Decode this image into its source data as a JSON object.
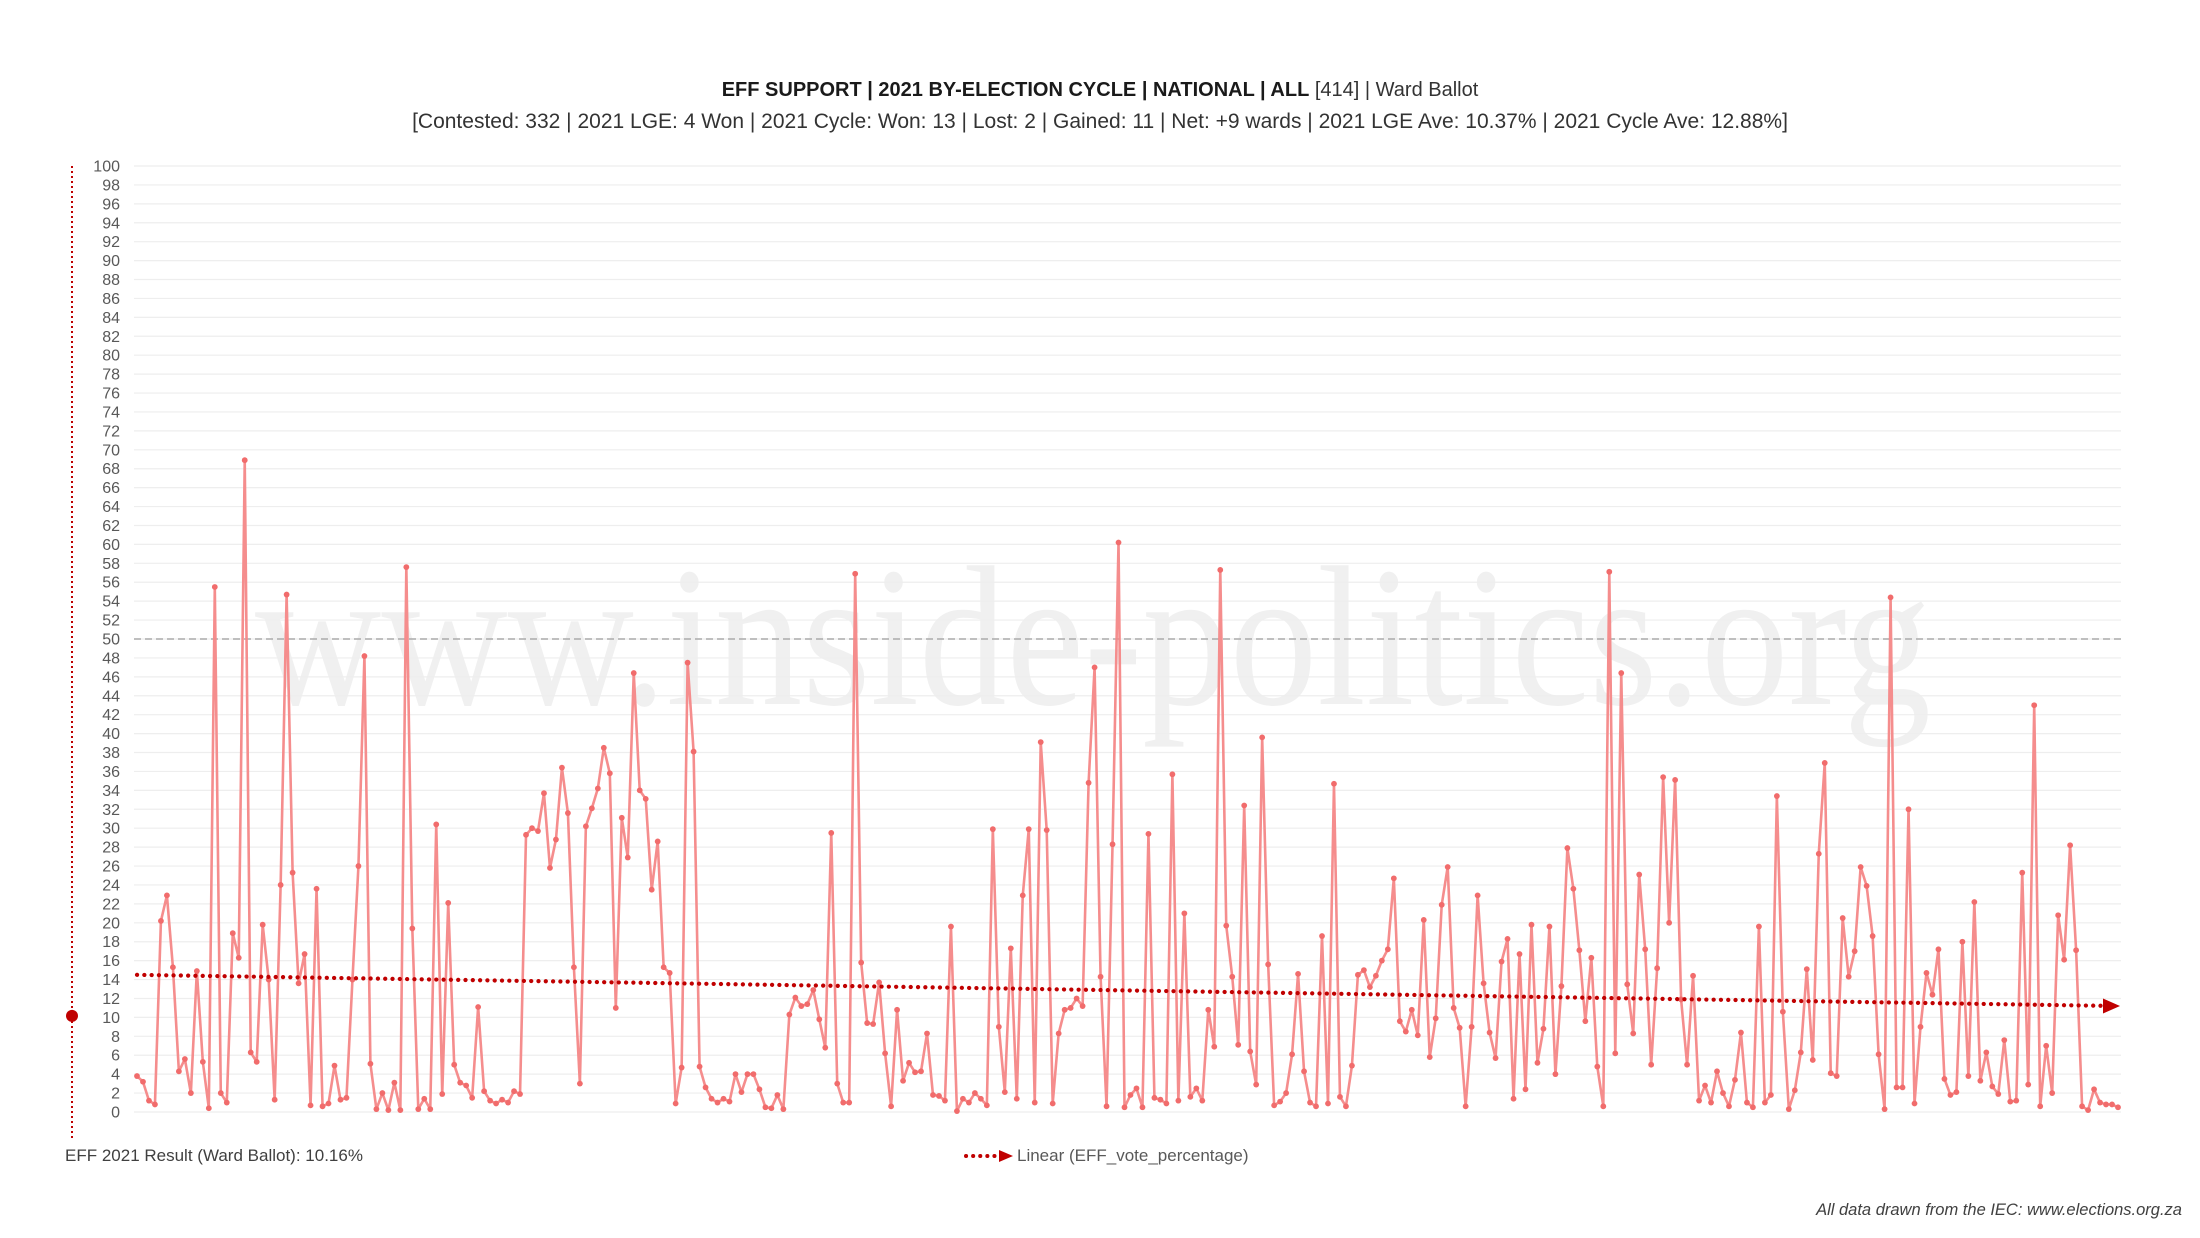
{
  "chart_data": {
    "type": "line",
    "title": {
      "bold": "EFF SUPPORT | 2021 BY-ELECTION CYCLE | NATIONAL | ALL",
      "regular": "[414] | Ward Ballot"
    },
    "subtitle": "[Contested: 332 | 2021 LGE: 4 Won | 2021 Cycle: Won: 13 | Lost: 2 | Gained: 11 | Net: +9 wards | 2021 LGE Ave: 10.37% | 2021 Cycle Ave: 12.88%]",
    "ylim": [
      0,
      100
    ],
    "yticks": [
      0,
      2,
      4,
      6,
      8,
      10,
      12,
      14,
      16,
      18,
      20,
      22,
      24,
      26,
      28,
      30,
      32,
      34,
      36,
      38,
      40,
      42,
      44,
      46,
      48,
      50,
      52,
      54,
      56,
      58,
      60,
      62,
      64,
      66,
      68,
      70,
      72,
      74,
      76,
      78,
      80,
      82,
      84,
      86,
      88,
      90,
      92,
      94,
      96,
      98,
      100
    ],
    "grid": true,
    "series": [
      {
        "values": [
          3.8,
          3.2,
          1.2,
          0.8,
          20.2,
          22.9,
          15.3,
          4.3,
          5.6,
          2.0,
          14.9,
          5.3,
          0.4,
          55.5,
          2.0,
          1.0,
          18.9,
          16.3,
          68.9,
          6.3,
          5.3,
          19.8,
          14.0,
          1.3,
          24.0,
          54.7,
          25.3,
          13.6,
          16.7,
          0.7,
          23.6,
          0.6,
          0.9,
          4.9,
          1.3,
          1.5,
          14.0,
          26.0,
          48.2,
          5.1,
          0.3,
          2.0,
          0.2,
          3.1,
          0.2,
          57.6,
          19.4,
          0.3,
          1.4,
          0.3,
          30.4,
          1.9,
          22.1,
          5.0,
          3.1,
          2.8,
          1.5,
          11.1,
          2.2,
          1.2,
          0.9,
          1.3,
          1.0,
          2.2,
          1.9,
          29.3,
          30.0,
          29.7,
          33.7,
          25.8,
          28.8,
          36.4,
          31.6,
          15.3,
          3.0,
          30.2,
          32.1,
          34.2,
          38.5,
          35.8,
          11.0,
          31.1,
          26.9,
          46.4,
          34.0,
          33.1,
          23.5,
          28.6,
          15.3,
          14.7,
          0.9,
          4.7,
          47.5,
          38.1,
          4.8,
          2.6,
          1.4,
          1.0,
          1.4,
          1.1,
          4.0,
          2.1,
          4.0,
          4.0,
          2.4,
          0.5,
          0.4,
          1.8,
          0.3,
          10.3,
          12.1,
          11.2,
          11.4,
          12.9,
          9.8,
          6.8,
          29.5,
          3.0,
          1.0,
          1.0,
          56.9,
          15.8,
          9.4,
          9.3,
          13.7,
          6.2,
          0.6,
          10.8,
          3.3,
          5.2,
          4.2,
          4.3,
          8.3,
          1.8,
          1.7,
          1.2,
          19.6,
          0.1,
          1.4,
          1.0,
          2.0,
          1.4,
          0.7,
          29.9,
          9.0,
          2.1,
          17.3,
          1.4,
          22.9,
          29.9,
          1.0,
          39.1,
          29.8,
          0.9,
          8.3,
          10.8,
          11.0,
          12.0,
          11.2,
          34.8,
          47.0,
          14.3,
          0.6,
          28.3,
          60.2,
          0.5,
          1.8,
          2.5,
          0.5,
          29.4,
          1.5,
          1.3,
          0.9,
          35.7,
          1.2,
          21.0,
          1.6,
          2.5,
          1.2,
          10.8,
          6.9,
          57.3,
          19.7,
          14.3,
          7.1,
          32.4,
          6.4,
          2.9,
          39.6,
          15.6,
          0.7,
          1.1,
          2.0,
          6.1,
          14.6,
          4.3,
          1.0,
          0.6,
          18.6,
          0.9,
          34.7,
          1.6,
          0.6,
          4.9,
          14.5,
          15.0,
          13.2,
          14.4,
          16.0,
          17.2,
          24.7,
          9.6,
          8.5,
          10.8,
          8.1,
          20.3,
          5.8,
          9.9,
          21.9,
          25.9,
          11.0,
          8.9,
          0.6,
          9.0,
          22.9,
          13.6,
          8.4,
          5.7,
          15.9,
          18.3,
          1.4,
          16.7,
          2.4,
          19.8,
          5.2,
          8.8,
          19.6,
          4.0,
          13.3,
          27.9,
          23.6,
          17.1,
          9.6,
          16.3,
          4.8,
          0.6,
          57.1,
          6.2,
          46.4,
          13.5,
          8.3,
          25.1,
          17.2,
          5.0,
          15.2,
          35.4,
          20.0,
          35.1,
          11.9,
          5.0,
          14.4,
          1.2,
          2.8,
          1.0,
          4.3,
          2.0,
          0.6,
          3.4,
          8.4,
          1.0,
          0.5,
          19.6,
          1.0,
          1.8,
          33.4,
          10.6,
          0.3,
          2.3,
          6.3,
          15.1,
          5.5,
          27.3,
          36.9,
          4.1,
          3.8,
          20.5,
          14.3,
          17.0,
          25.9,
          23.9,
          18.6,
          6.1,
          0.3,
          54.4,
          2.6,
          2.6,
          32.0,
          0.9,
          9.0,
          14.7,
          12.4,
          17.2,
          3.5,
          1.8,
          2.1,
          18.0,
          3.8,
          22.2,
          3.3,
          6.3,
          2.7,
          1.9,
          7.6,
          1.1,
          1.2,
          25.3,
          2.9,
          43.0,
          0.6,
          7.0,
          2.0,
          20.8,
          16.1,
          28.2,
          17.1,
          0.6,
          0.2,
          2.4,
          1.0,
          0.8,
          0.8,
          0.5
        ]
      }
    ],
    "trendline": {
      "label": "Linear (EFF_vote_percentage)",
      "start": 14.5,
      "end": 11.2
    },
    "reference": {
      "label": "EFF 2021 Result (Ward Ballot): 10.16%",
      "value": 10.16
    },
    "threshold": 50,
    "legend_position": "bottom-center"
  },
  "watermark": "www.inside-politics.org",
  "source_note": "All data drawn from the IEC: www.elections.org.za",
  "colors": {
    "series_line": "#f48787",
    "series_point": "#f16c6c",
    "trend": "#c00000",
    "reference": "#c00000",
    "threshold": "#ababab",
    "grid": "#eeeeee",
    "tick_label": "#595959",
    "watermark": "#f0f0f0"
  }
}
